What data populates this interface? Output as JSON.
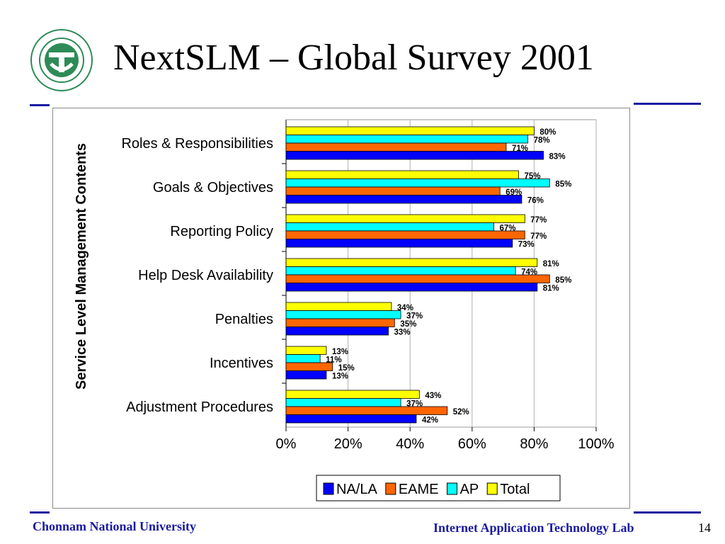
{
  "slide": {
    "title": "NextSLM – Global Survey 2001",
    "footer_left": "Chonnam National University",
    "footer_right": "Internet Application Technology Lab",
    "page_number": "14",
    "colors": {
      "rule": "#1a1aa0",
      "footer": "#1a1aa0"
    }
  },
  "chart_data": {
    "type": "bar",
    "orientation": "horizontal",
    "title": "",
    "xlabel": "",
    "ylabel": "Service Level Management Contents",
    "categories": [
      "Roles & Responsibilities",
      "Goals & Objectives",
      "Reporting Policy",
      "Help Desk Availability",
      "Penalties",
      "Incentives",
      "Adjustment Procedures"
    ],
    "series": [
      {
        "name": "Total",
        "color": "#ffff00",
        "values": [
          80,
          75,
          77,
          81,
          34,
          13,
          43
        ]
      },
      {
        "name": "AP",
        "color": "#00ffff",
        "values": [
          78,
          85,
          67,
          74,
          37,
          11,
          37
        ]
      },
      {
        "name": "EAME",
        "color": "#ff6600",
        "values": [
          71,
          69,
          77,
          85,
          35,
          15,
          52
        ]
      },
      {
        "name": "NA/LA",
        "color": "#0000ff",
        "values": [
          83,
          76,
          73,
          81,
          33,
          13,
          42
        ]
      }
    ],
    "legend_order": [
      "NA/LA",
      "EAME",
      "AP",
      "Total"
    ],
    "legend_position": "bottom",
    "xlim": [
      0,
      100
    ],
    "xticks": [
      "0%",
      "20%",
      "40%",
      "60%",
      "80%",
      "100%"
    ],
    "value_suffix": "%",
    "grid": "vertical"
  }
}
